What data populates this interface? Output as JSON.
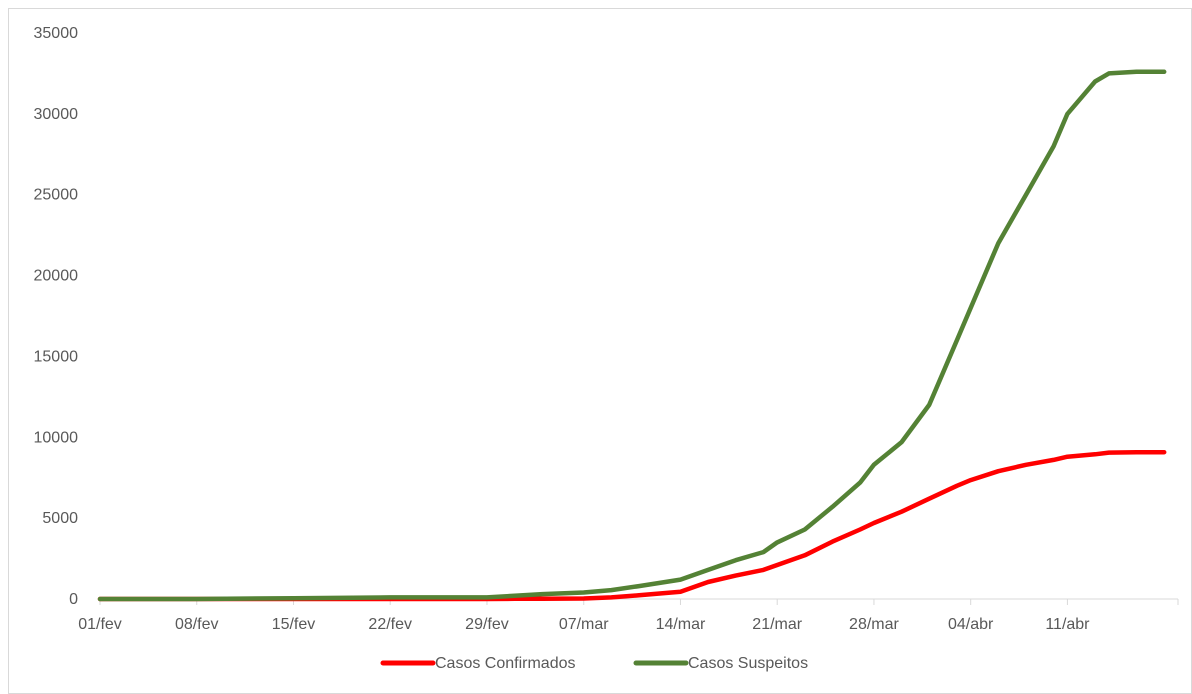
{
  "chart_data": {
    "type": "line",
    "title": "",
    "xlabel": "",
    "ylabel": "",
    "ylim": [
      0,
      35000
    ],
    "yticks": [
      0,
      5000,
      10000,
      15000,
      20000,
      25000,
      30000,
      35000
    ],
    "grid": false,
    "legend_position": "bottom",
    "x_tick_labels": [
      "01/fev",
      "08/fev",
      "15/fev",
      "22/fev",
      "29/fev",
      "07/mar",
      "14/mar",
      "21/mar",
      "28/mar",
      "04/abr",
      "11/abr"
    ],
    "x": [
      "01/fev",
      "08/fev",
      "15/fev",
      "22/fev",
      "29/fev",
      "02/mar",
      "04/mar",
      "07/mar",
      "09/mar",
      "11/mar",
      "14/mar",
      "16/mar",
      "18/mar",
      "20/mar",
      "21/mar",
      "23/mar",
      "25/mar",
      "27/mar",
      "28/mar",
      "30/mar",
      "01/abr",
      "03/abr",
      "04/abr",
      "06/abr",
      "08/abr",
      "10/abr",
      "11/abr",
      "13/abr",
      "14/abr",
      "16/abr",
      "17/abr",
      "18/abr"
    ],
    "series": [
      {
        "name": "Casos Confirmados",
        "color": "#ff0000",
        "values": [
          0,
          0,
          0,
          0,
          0,
          10,
          20,
          30,
          100,
          230,
          450,
          1050,
          1450,
          1800,
          2100,
          2700,
          3550,
          4300,
          4700,
          5400,
          6200,
          7000,
          7350,
          7900,
          8300,
          8600,
          8800,
          8950,
          9050,
          9080,
          9080,
          9080
        ]
      },
      {
        "name": "Casos Suspeitos",
        "color": "#548235",
        "values": [
          0,
          0,
          50,
          100,
          100,
          200,
          300,
          400,
          550,
          800,
          1200,
          1800,
          2400,
          2900,
          3500,
          4300,
          5700,
          7200,
          8300,
          9700,
          12000,
          16000,
          18000,
          22000,
          25000,
          28000,
          30000,
          32000,
          32500,
          32600,
          32600,
          32600
        ]
      }
    ]
  }
}
